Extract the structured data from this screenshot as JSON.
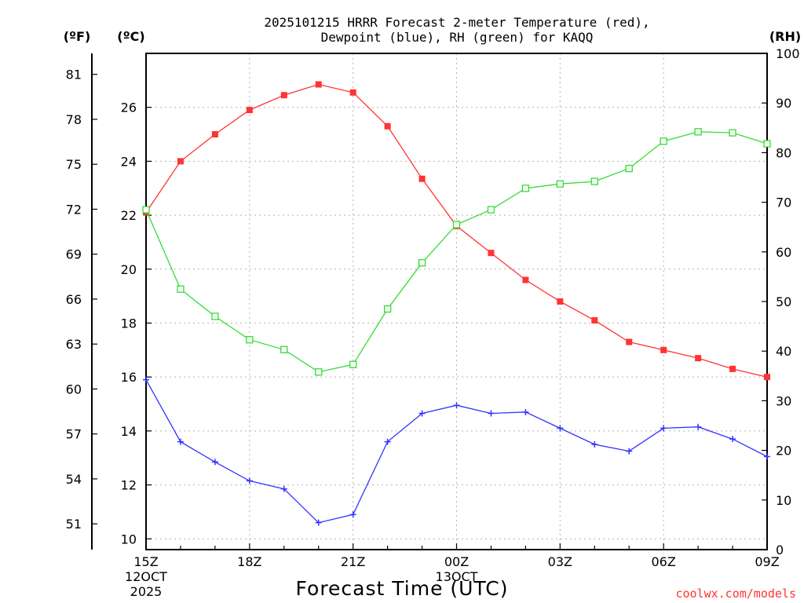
{
  "chart_data": {
    "type": "line",
    "title_line1": "2025101215 HRRR Forecast 2-meter Temperature (red),",
    "title_line2": "Dewpoint (blue), RH (green) for KAQQ",
    "xlabel": "Forecast Time (UTC)",
    "credit": "coolwx.com/models",
    "unit_f": "(ºF)",
    "unit_c": "(ºC)",
    "unit_rh": "(RH)",
    "ylim_c": [
      9.6,
      28.0
    ],
    "ylim_rh": [
      0,
      100
    ],
    "y_ticks_c": [
      "10",
      "12",
      "14",
      "16",
      "18",
      "20",
      "22",
      "24",
      "26"
    ],
    "y_ticks_f": [
      "51",
      "54",
      "57",
      "60",
      "63",
      "66",
      "69",
      "72",
      "75",
      "78",
      "81"
    ],
    "y_ticks_rh": [
      "0",
      "10",
      "20",
      "30",
      "40",
      "50",
      "60",
      "70",
      "80",
      "90",
      "100"
    ],
    "x_ticks": [
      {
        "hour": 0,
        "label": "15Z",
        "sub1": "12OCT",
        "sub2": "2025"
      },
      {
        "hour": 3,
        "label": "18Z",
        "sub1": "",
        "sub2": ""
      },
      {
        "hour": 6,
        "label": "21Z",
        "sub1": "",
        "sub2": ""
      },
      {
        "hour": 9,
        "label": "00Z",
        "sub1": "13OCT",
        "sub2": ""
      },
      {
        "hour": 12,
        "label": "03Z",
        "sub1": "",
        "sub2": ""
      },
      {
        "hour": 15,
        "label": "06Z",
        "sub1": "",
        "sub2": ""
      },
      {
        "hour": 18,
        "label": "09Z",
        "sub1": "",
        "sub2": ""
      }
    ],
    "x_hours": [
      0,
      1,
      2,
      3,
      4,
      5,
      6,
      7,
      8,
      9,
      10,
      11,
      12,
      13,
      14,
      15,
      16,
      17,
      18
    ],
    "series": [
      {
        "name": "2-meter Temperature",
        "unit": "C",
        "color": "#ff3333",
        "marker": "filled-square",
        "values": [
          22.1,
          24.0,
          25.0,
          25.9,
          26.45,
          26.85,
          26.55,
          25.3,
          23.35,
          21.6,
          20.6,
          19.6,
          18.8,
          18.1,
          17.3,
          17.0,
          16.7,
          16.3,
          16.0
        ]
      },
      {
        "name": "Dewpoint",
        "unit": "C",
        "color": "#3333ff",
        "marker": "plus",
        "values": [
          15.9,
          13.6,
          12.85,
          12.15,
          11.85,
          10.6,
          10.9,
          13.6,
          14.65,
          14.95,
          14.65,
          14.7,
          14.1,
          13.5,
          13.25,
          14.1,
          14.15,
          13.7,
          13.05
        ]
      },
      {
        "name": "RH",
        "unit": "%",
        "color": "#33dd33",
        "marker": "open-square",
        "values": [
          68.5,
          52.5,
          47.0,
          42.3,
          40.3,
          35.8,
          37.3,
          48.5,
          57.8,
          65.5,
          68.5,
          72.8,
          73.7,
          74.2,
          76.8,
          82.3,
          84.2,
          84.0,
          81.8
        ]
      }
    ]
  }
}
